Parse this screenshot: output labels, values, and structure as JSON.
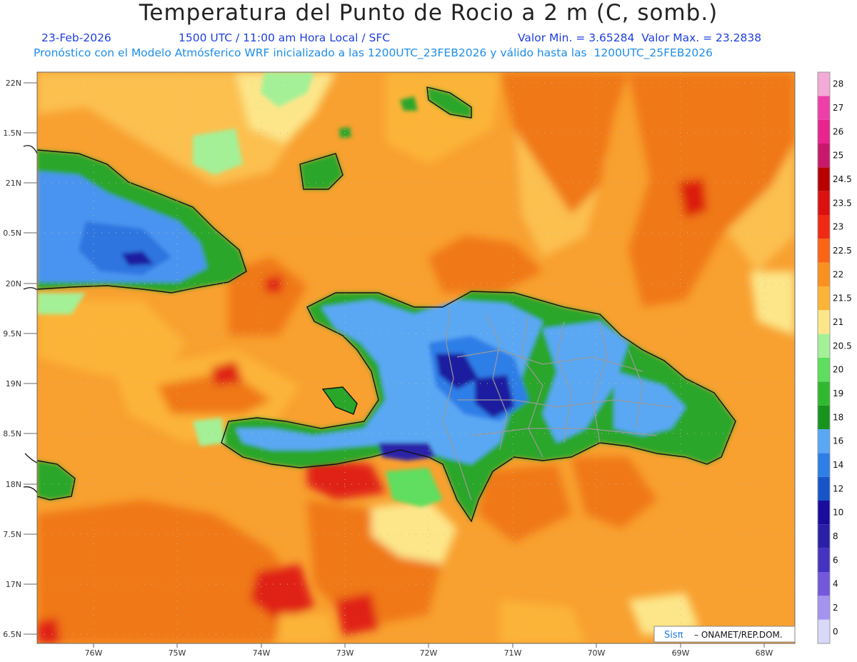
{
  "title": "Temperatura del Punto de Rocio a 2 m (C, somb.)",
  "date": "23-Feb-2026",
  "time_info": "1500 UTC / 11:00 am Hora Local / SFC",
  "minmax": "Valor Min. = 3.65284  Valor Max. = 23.2838",
  "model_info": "Pronóstico con el Modelo Atmósferico WRF inicializado a las 1200UTC_23FEB2026 y válido hasta las  1200UTC_25FEB2026",
  "credit": {
    "logo": "Sisπ",
    "text": "– ONAMET/REP.DOM."
  },
  "lat_ticks": [
    "22N",
    "1.5N",
    "21N",
    "0.5N",
    "20N",
    "9.5N",
    "19N",
    "8.5N",
    "18N",
    "7.5N",
    "17N",
    "6.5N"
  ],
  "lon_ticks": [
    "76W",
    "75W",
    "74W",
    "73W",
    "72W",
    "71W",
    "70W",
    "69W",
    "68W"
  ],
  "colorbar": {
    "labels": [
      "28",
      "27",
      "26",
      "25",
      "24.5",
      "23.5",
      "23",
      "22.5",
      "22",
      "21.5",
      "21",
      "20.5",
      "20",
      "19",
      "18",
      "16",
      "14",
      "12",
      "10",
      "8",
      "6",
      "4",
      "2",
      "0"
    ],
    "colors": [
      "#f4aad6",
      "#ee3ea8",
      "#e8248e",
      "#c8186c",
      "#b80000",
      "#dc1010",
      "#ee2a14",
      "#fa6414",
      "#fa9020",
      "#fcb438",
      "#fde68a",
      "#a4f096",
      "#5ede5e",
      "#30b830",
      "#18941e",
      "#5aa8f4",
      "#2e7ee8",
      "#1654c8",
      "#1a0c9c",
      "#2a20a8",
      "#4632c0",
      "#7458dc",
      "#a494f0",
      "#d8d8f8"
    ]
  },
  "colors": {
    "ocean": "#f8a030",
    "ocean_dark": "#f07818",
    "land_blue": "#5aa0f0",
    "land_green": "#2aa62a"
  }
}
